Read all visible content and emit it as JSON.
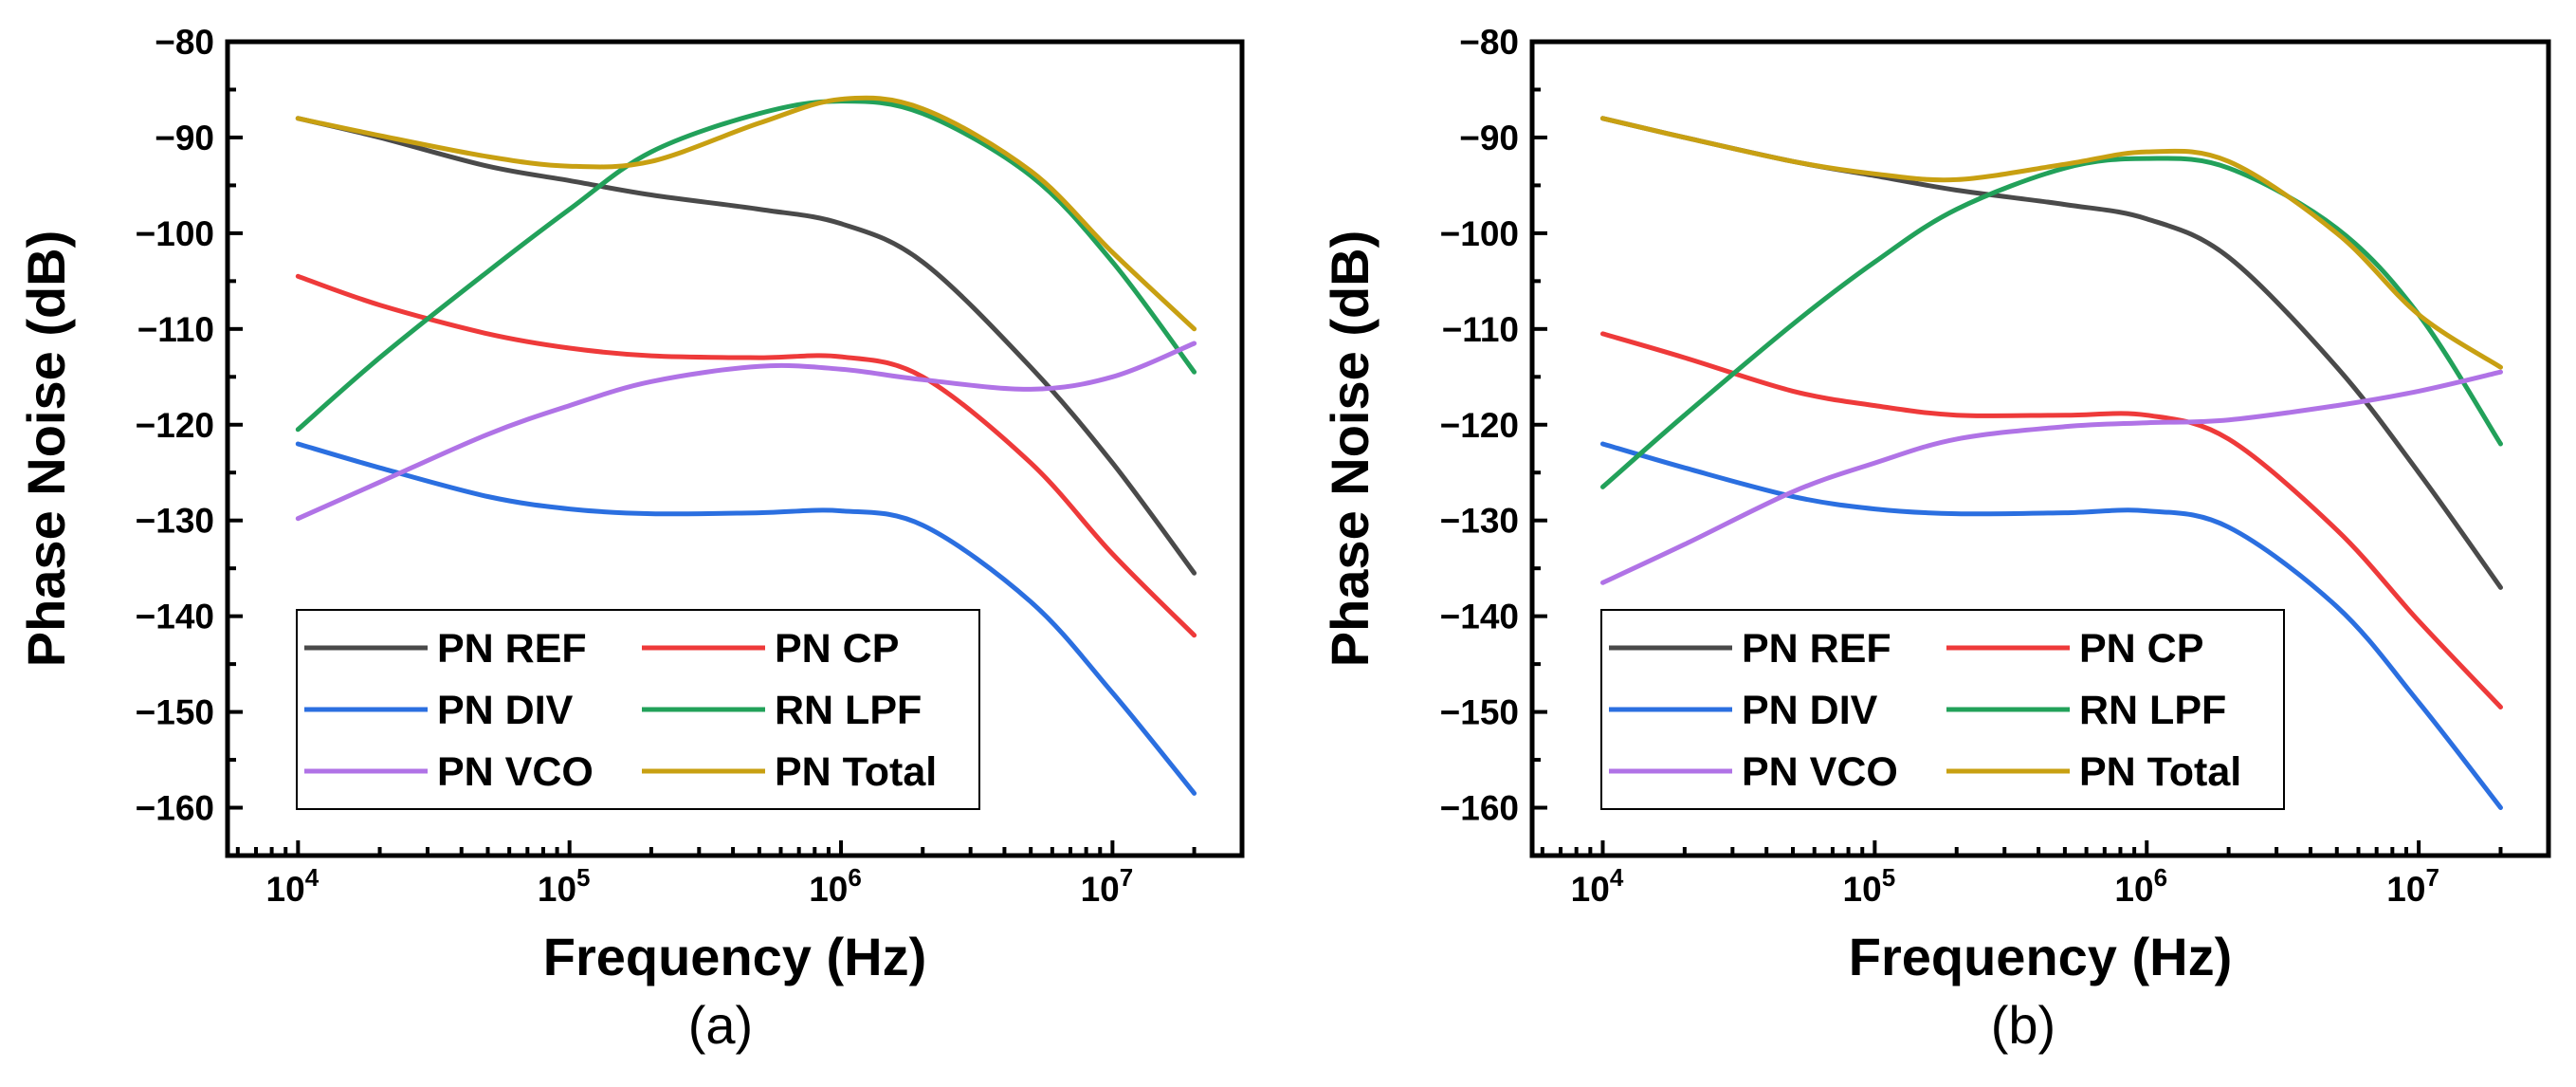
{
  "colors": {
    "PN REF": "#4a4a4a",
    "PN CP": "#ee3a3a",
    "PN DIV": "#2b6fe0",
    "RN LPF": "#22a15a",
    "PN VCO": "#b073e6",
    "PN Total": "#c8a012"
  },
  "chart_data": [
    {
      "type": "line",
      "panel_label": "(a)",
      "xlabel": "Frequency (Hz)",
      "ylabel": "Phase Noise (dB)",
      "xscale": "log",
      "xlim": [
        5500,
        30000000
      ],
      "ylim": [
        -165,
        -80
      ],
      "x_ticks": [
        {
          "base": "10",
          "exp": "4"
        },
        {
          "base": "10",
          "exp": "5"
        },
        {
          "base": "10",
          "exp": "6"
        },
        {
          "base": "10",
          "exp": "7"
        }
      ],
      "y_ticks": [
        "−80",
        "−90",
        "−100",
        "−110",
        "−120",
        "−130",
        "−140",
        "−150",
        "−160"
      ],
      "y_tick_values": [
        -80,
        -90,
        -100,
        -110,
        -120,
        -130,
        -140,
        -150,
        -160
      ],
      "legend": {
        "location": "bottom-left",
        "columns": 2,
        "entries": [
          "PN REF",
          "PN CP",
          "PN DIV",
          "RN LPF",
          "PN VCO",
          "PN Total"
        ]
      },
      "x": [
        10000,
        20000,
        50000,
        100000,
        200000,
        500000,
        1000000,
        2000000,
        5000000,
        10000000,
        20000000
      ],
      "series": [
        {
          "name": "PN REF",
          "values": [
            -88,
            -90,
            -93,
            -94.5,
            -96,
            -97.5,
            -99,
            -103,
            -114,
            -124,
            -135.5
          ]
        },
        {
          "name": "PN CP",
          "values": [
            -104.5,
            -107.5,
            -110.5,
            -112,
            -112.8,
            -113,
            -112.9,
            -115,
            -124,
            -133.5,
            -142
          ]
        },
        {
          "name": "PN DIV",
          "values": [
            -122,
            -124.5,
            -127.5,
            -128.8,
            -129.3,
            -129.2,
            -129,
            -130.5,
            -138.5,
            -148,
            -158.5
          ]
        },
        {
          "name": "RN LPF",
          "values": [
            -120.5,
            -113,
            -104,
            -97.5,
            -91.5,
            -87.5,
            -86.2,
            -87.5,
            -94,
            -103,
            -114.5
          ]
        },
        {
          "name": "PN VCO",
          "values": [
            -129.8,
            -126,
            -121,
            -118,
            -115.5,
            -113.9,
            -114.2,
            -115.3,
            -116.3,
            -115,
            -111.5
          ]
        },
        {
          "name": "PN Total",
          "values": [
            -88,
            -89.8,
            -92,
            -93,
            -92.5,
            -88.5,
            -86,
            -87,
            -93.5,
            -102,
            -110
          ]
        }
      ]
    },
    {
      "type": "line",
      "panel_label": "(b)",
      "xlabel": "Frequency (Hz)",
      "ylabel": "Phase Noise (dB)",
      "xscale": "log",
      "xlim": [
        5500,
        30000000
      ],
      "ylim": [
        -165,
        -80
      ],
      "x_ticks": [
        {
          "base": "10",
          "exp": "4"
        },
        {
          "base": "10",
          "exp": "5"
        },
        {
          "base": "10",
          "exp": "6"
        },
        {
          "base": "10",
          "exp": "7"
        }
      ],
      "y_ticks": [
        "−80",
        "−90",
        "−100",
        "−110",
        "−120",
        "−130",
        "−140",
        "−150",
        "−160"
      ],
      "y_tick_values": [
        -80,
        -90,
        -100,
        -110,
        -120,
        -130,
        -140,
        -150,
        -160
      ],
      "legend": {
        "location": "bottom-left",
        "columns": 2,
        "entries": [
          "PN REF",
          "PN CP",
          "PN DIV",
          "RN LPF",
          "PN VCO",
          "PN Total"
        ]
      },
      "x": [
        10000,
        20000,
        50000,
        100000,
        200000,
        500000,
        1000000,
        2000000,
        5000000,
        10000000,
        20000000
      ],
      "series": [
        {
          "name": "PN REF",
          "values": [
            -88,
            -90,
            -92.5,
            -94,
            -95.5,
            -97,
            -98.5,
            -102.5,
            -114,
            -125,
            -137
          ]
        },
        {
          "name": "PN CP",
          "values": [
            -110.5,
            -113,
            -116.5,
            -118,
            -119,
            -119,
            -119,
            -121.5,
            -131,
            -140.5,
            -149.5
          ]
        },
        {
          "name": "PN DIV",
          "values": [
            -122,
            -124.5,
            -127.5,
            -128.8,
            -129.3,
            -129.2,
            -129,
            -130.7,
            -139,
            -149,
            -160
          ]
        },
        {
          "name": "RN LPF",
          "values": [
            -126.5,
            -119,
            -109.5,
            -103,
            -97.5,
            -93.2,
            -92.2,
            -93.2,
            -99.5,
            -108.5,
            -122
          ]
        },
        {
          "name": "PN VCO",
          "values": [
            -136.5,
            -132.5,
            -127,
            -124,
            -121.5,
            -120.2,
            -119.8,
            -119.5,
            -118,
            -116.5,
            -114.5
          ]
        },
        {
          "name": "PN Total",
          "values": [
            -88,
            -90,
            -92.5,
            -93.8,
            -94.4,
            -92.8,
            -91.5,
            -92.5,
            -100,
            -108.5,
            -114
          ]
        }
      ]
    }
  ]
}
